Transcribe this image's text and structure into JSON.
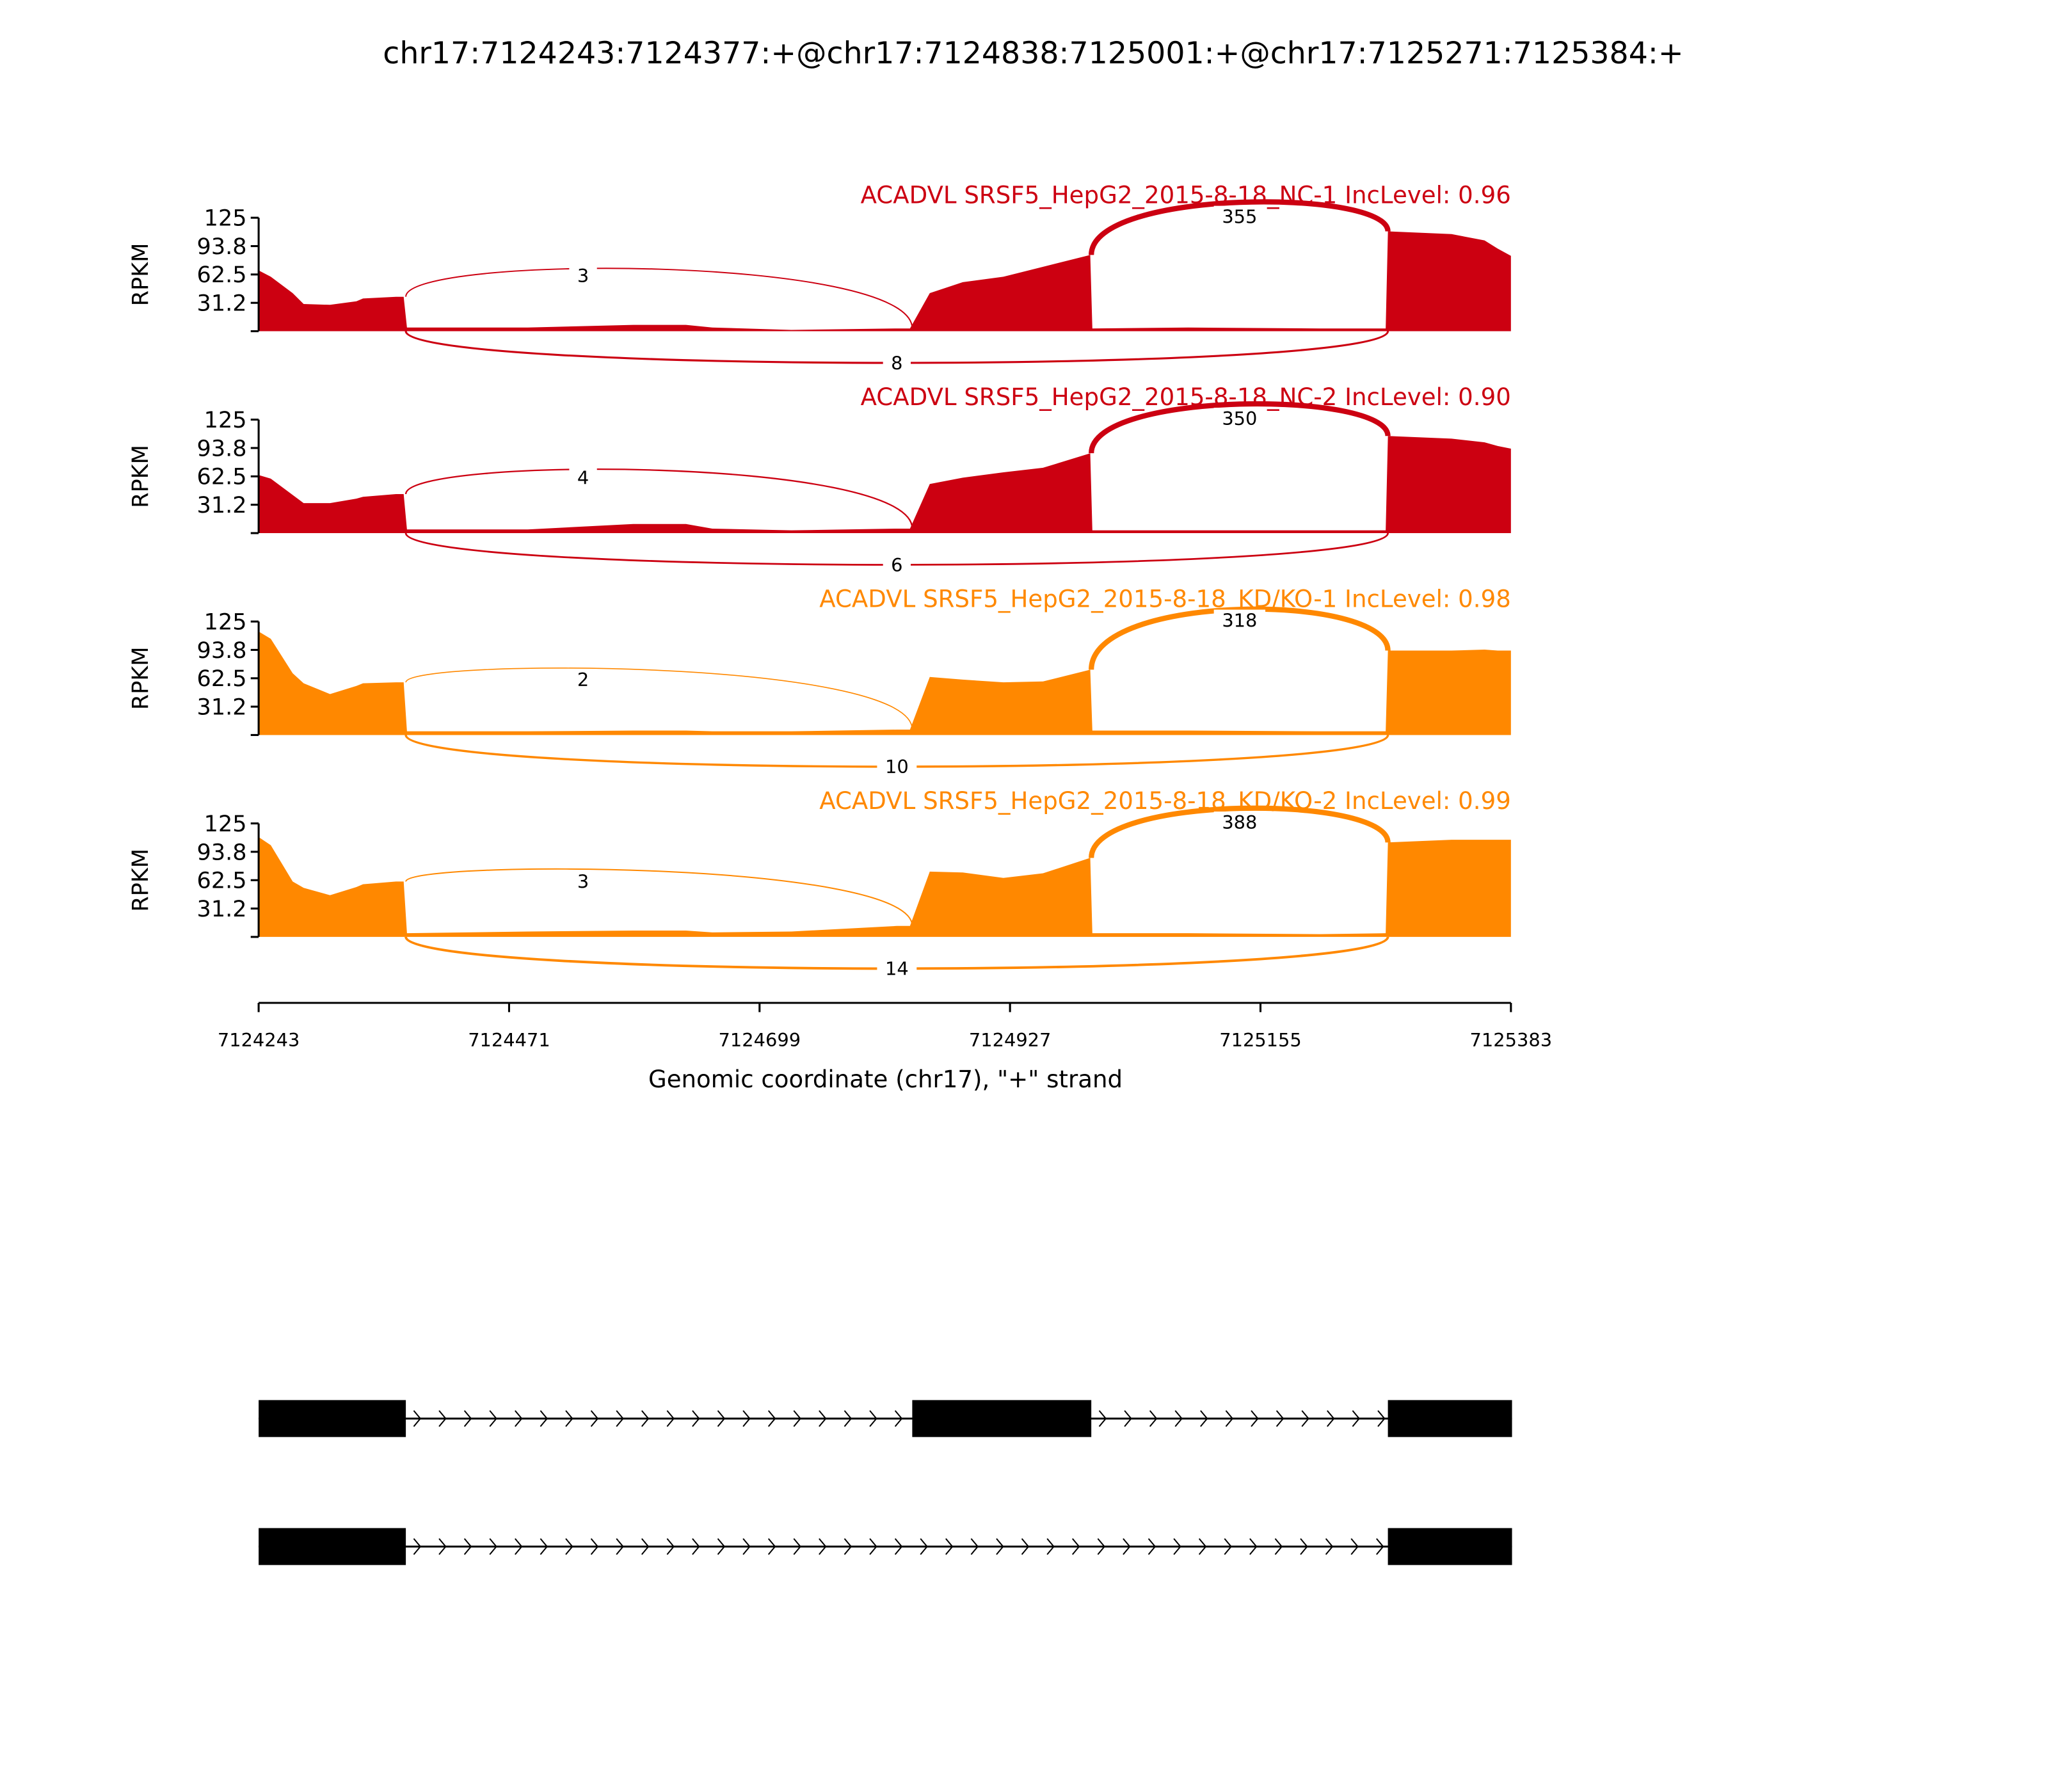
{
  "chart_data": {
    "type": "area",
    "title": "chr17:7124243:7124377:+@chr17:7124838:7125001:+@chr17:7125271:7125384:+",
    "xlabel": "Genomic coordinate (chr17), \"+\" strand",
    "ylabel": "RPKM",
    "xlim": [
      7124243,
      7125383
    ],
    "ylim": [
      0,
      125
    ],
    "x_ticks": [
      "7124243",
      "7124471",
      "7124699",
      "7124927",
      "7125155",
      "7125383"
    ],
    "y_ticks": [
      "125",
      "93.8",
      "62.5",
      "31.2"
    ],
    "exons": [
      [
        7124243,
        7124377
      ],
      [
        7124838,
        7125001
      ],
      [
        7125271,
        7125384
      ]
    ],
    "coverage_x": [
      7124243,
      7124254,
      7124274,
      7124284,
      7124308,
      7124332,
      7124338,
      7124368,
      7124375,
      7124378,
      7124488,
      7124584,
      7124632,
      7124656,
      7124728,
      7124824,
      7124836,
      7124854,
      7124884,
      7124921,
      7124957,
      7125000,
      7125002,
      7125089,
      7125209,
      7125269,
      7125271,
      7125329,
      7125359,
      7125371,
      7125383
    ],
    "series": [
      {
        "name": "ACADVL SRSF5_HepG2_2015-8-18_NC-1 IncLevel: 0.96",
        "color": "#CC0011",
        "values": [
          67,
          60,
          42,
          30,
          29,
          33,
          36,
          38,
          38,
          4,
          4,
          7,
          7,
          4,
          1.5,
          3,
          3,
          42,
          54,
          60,
          71,
          84,
          3,
          4,
          3,
          3,
          110,
          107,
          100,
          91,
          83
        ],
        "junctions": [
          {
            "from": 7124377,
            "to": 7124838,
            "count": "3",
            "side": "above"
          },
          {
            "from": 7125001,
            "to": 7125271,
            "count": "355",
            "side": "above"
          },
          {
            "from": 7124377,
            "to": 7125271,
            "count": "8",
            "side": "below"
          }
        ]
      },
      {
        "name": "ACADVL SRSF5_HepG2_2015-8-18_NC-2 IncLevel: 0.90",
        "color": "#CC0011",
        "values": [
          64,
          60,
          42,
          33,
          33,
          38,
          40,
          43,
          43,
          4,
          4,
          10,
          10,
          5,
          3,
          5,
          5,
          54,
          61,
          67,
          72,
          88,
          3,
          3,
          3,
          3,
          107,
          104,
          100,
          96,
          93
        ],
        "junctions": [
          {
            "from": 7124377,
            "to": 7124838,
            "count": "4",
            "side": "above"
          },
          {
            "from": 7125001,
            "to": 7125271,
            "count": "350",
            "side": "above"
          },
          {
            "from": 7124377,
            "to": 7125271,
            "count": "6",
            "side": "below"
          }
        ]
      },
      {
        "name": "ACADVL SRSF5_HepG2_2015-8-18_KD/KO-1 IncLevel: 0.98",
        "color": "#FF8800",
        "values": [
          114,
          106,
          68,
          57,
          45,
          54,
          57,
          58,
          58,
          4,
          4,
          5,
          5,
          4,
          4,
          6,
          6,
          64,
          61,
          58,
          59,
          72,
          5,
          5,
          4,
          4,
          93,
          93,
          94,
          93,
          93
        ],
        "junctions": [
          {
            "from": 7124377,
            "to": 7124838,
            "count": "2",
            "side": "above"
          },
          {
            "from": 7125001,
            "to": 7125271,
            "count": "318",
            "side": "above"
          },
          {
            "from": 7124377,
            "to": 7125271,
            "count": "10",
            "side": "below"
          }
        ]
      },
      {
        "name": "ACADVL SRSF5_HepG2_2015-8-18_KD/KO-2 IncLevel: 0.99",
        "color": "#FF8800",
        "values": [
          110,
          101,
          61,
          54,
          46,
          55,
          58,
          61,
          61,
          4,
          6,
          7,
          7,
          5,
          6,
          12,
          12,
          72,
          71,
          65,
          70,
          87,
          4,
          4,
          3,
          4,
          104,
          107,
          107,
          107,
          107
        ],
        "junctions": [
          {
            "from": 7124377,
            "to": 7124838,
            "count": "3",
            "side": "above"
          },
          {
            "from": 7125001,
            "to": 7125271,
            "count": "388",
            "side": "above"
          },
          {
            "from": 7124377,
            "to": 7125271,
            "count": "14",
            "side": "below"
          }
        ]
      }
    ],
    "transcripts": [
      {
        "exons": [
          [
            7124243,
            7124377
          ],
          [
            7124838,
            7125001
          ],
          [
            7125271,
            7125384
          ]
        ]
      },
      {
        "exons": [
          [
            7124243,
            7124377
          ],
          [
            7125271,
            7125384
          ]
        ]
      }
    ]
  }
}
